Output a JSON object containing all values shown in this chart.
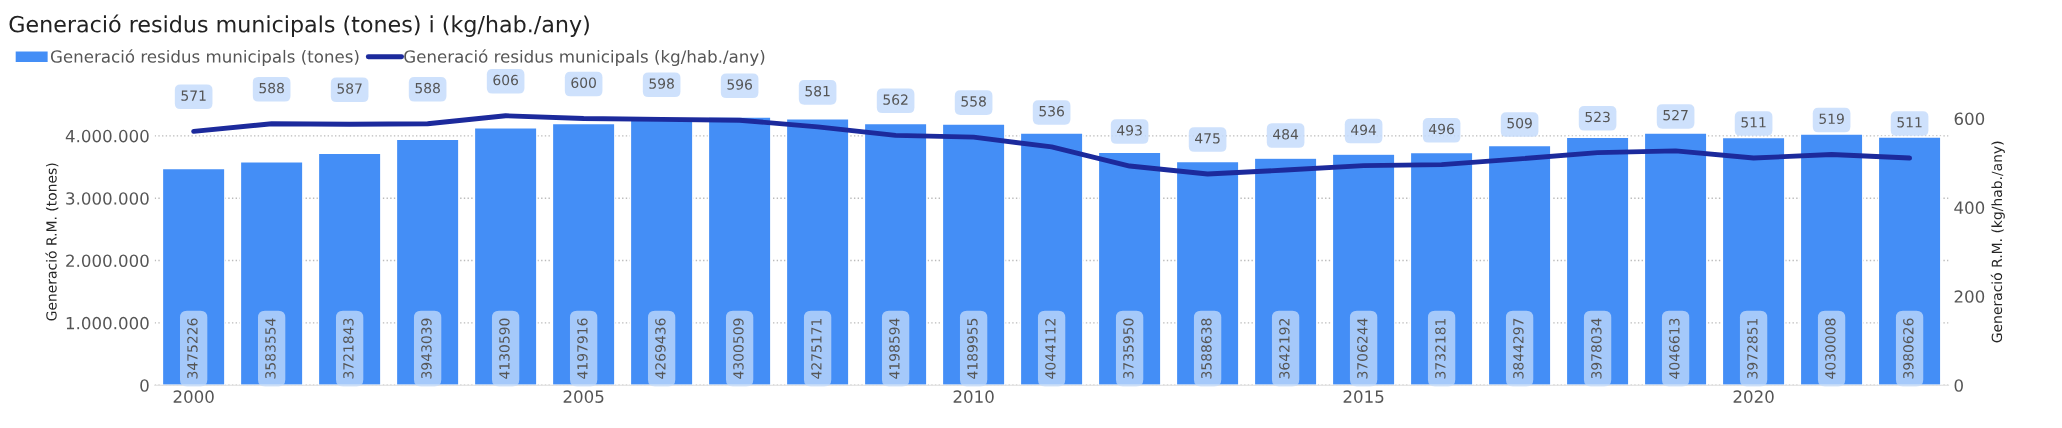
{
  "chart_data": {
    "type": "bar",
    "title": "Generació residus municipals (tones) i (kg/hab./any)",
    "x": [
      2000,
      2001,
      2002,
      2003,
      2004,
      2005,
      2006,
      2007,
      2008,
      2009,
      2010,
      2011,
      2012,
      2013,
      2014,
      2015,
      2016,
      2017,
      2018,
      2019,
      2020,
      2021,
      2022
    ],
    "series": [
      {
        "name": "Generació residus municipals (tones)",
        "color": "#448ef6",
        "values": [
          3475226,
          3583554,
          3721843,
          3943039,
          4130590,
          4197916,
          4269436,
          4300509,
          4275171,
          4198594,
          4189955,
          4044112,
          3735950,
          3588638,
          3642192,
          3706244,
          3732181,
          3844297,
          3978034,
          4046613,
          3972851,
          4030008,
          3980626
        ]
      },
      {
        "name": "Generació residus municipals (kg/hab./any)",
        "type": "line",
        "axis": "y2",
        "color": "#1c2a9c",
        "values": [
          571,
          588,
          587,
          588,
          606,
          600,
          598,
          596,
          581,
          562,
          558,
          536,
          493,
          475,
          484,
          494,
          496,
          509,
          523,
          527,
          511,
          519,
          511
        ]
      }
    ],
    "ylabel": "Generació R.M. (tones)",
    "y2label": "Generació R.M. (kg/hab./any)",
    "xlim": [
      1999.5,
      2022.5
    ],
    "xticks": [
      2000,
      2005,
      2010,
      2015,
      2020
    ],
    "ylim": [
      0,
      4600000
    ],
    "yticks": [
      0,
      {
        "value": 1000000,
        "label": "1.000.000"
      },
      {
        "value": 2000000,
        "label": "2.000.000"
      },
      {
        "value": 3000000,
        "label": "3.000.000"
      },
      {
        "value": 4000000,
        "label": "4.000.000"
      }
    ],
    "y2lim": [
      0,
      645
    ],
    "y2ticks": [
      0,
      200,
      400,
      600
    ],
    "grid": "y",
    "legend": "top left",
    "data_labels": true,
    "marker": "none",
    "line_style": "solid"
  }
}
